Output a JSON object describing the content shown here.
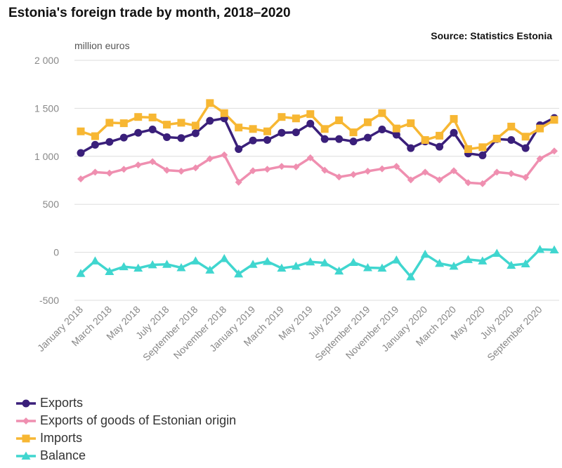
{
  "title": "Estonia's foreign trade by month, 2018–2020",
  "source": "Source: Statistics Estonia",
  "chart_data": {
    "type": "line",
    "title": "Estonia's foreign trade by month, 2018–2020",
    "ylabel": "million euros",
    "xlabel": "",
    "ylim": [
      -500,
      2000
    ],
    "yticks": [
      -500,
      0,
      500,
      1000,
      1500,
      2000
    ],
    "ytick_labels": [
      "-500",
      "0",
      "500",
      "1 000",
      "1 500",
      "2 000"
    ],
    "grid": true,
    "legend_position": "bottom-left",
    "x": [
      "January 2018",
      "February 2018",
      "March 2018",
      "April 2018",
      "May 2018",
      "June 2018",
      "July 2018",
      "August 2018",
      "September 2018",
      "October 2018",
      "November 2018",
      "December 2018",
      "January 2019",
      "February 2019",
      "March 2019",
      "April 2019",
      "May 2019",
      "June 2019",
      "July 2019",
      "August 2019",
      "September 2019",
      "October 2019",
      "November 2019",
      "December 2019",
      "January 2020",
      "February 2020",
      "March 2020",
      "April 2020",
      "May 2020",
      "June 2020",
      "July 2020",
      "August 2020",
      "September 2020",
      "October 2020"
    ],
    "x_tick_labels": [
      "January 2018",
      "March 2018",
      "May 2018",
      "July 2018",
      "September 2018",
      "November 2018",
      "January 2019",
      "March 2019",
      "May 2019",
      "July 2019",
      "September 2019",
      "November 2019",
      "January 2020",
      "March 2020",
      "May 2020",
      "July 2020",
      "September 2020"
    ],
    "series": [
      {
        "name": "Exports",
        "color": "#3a1f7a",
        "marker": "circle",
        "values": [
          1035,
          1120,
          1150,
          1195,
          1245,
          1280,
          1200,
          1190,
          1240,
          1370,
          1395,
          1075,
          1165,
          1170,
          1245,
          1250,
          1340,
          1180,
          1180,
          1155,
          1195,
          1280,
          1225,
          1085,
          1155,
          1100,
          1245,
          1030,
          1010,
          1180,
          1170,
          1085,
          1325,
          1400
        ]
      },
      {
        "name": "Exports of goods of Estonian origin",
        "color": "#ef8fb0",
        "marker": "diamond",
        "values": [
          765,
          835,
          825,
          865,
          910,
          945,
          855,
          845,
          880,
          975,
          1015,
          730,
          850,
          865,
          895,
          890,
          985,
          855,
          785,
          810,
          845,
          870,
          895,
          755,
          835,
          755,
          850,
          725,
          715,
          835,
          820,
          780,
          975,
          1055
        ]
      },
      {
        "name": "Imports",
        "color": "#f7b733",
        "marker": "square",
        "values": [
          1260,
          1210,
          1350,
          1345,
          1410,
          1405,
          1330,
          1350,
          1320,
          1555,
          1450,
          1300,
          1285,
          1260,
          1410,
          1395,
          1440,
          1285,
          1375,
          1250,
          1355,
          1450,
          1290,
          1345,
          1170,
          1215,
          1390,
          1075,
          1095,
          1185,
          1310,
          1205,
          1290,
          1380
        ]
      },
      {
        "name": "Balance",
        "color": "#40d6cf",
        "marker": "triangle",
        "values": [
          -220,
          -90,
          -200,
          -150,
          -165,
          -130,
          -125,
          -160,
          -90,
          -185,
          -65,
          -225,
          -125,
          -95,
          -165,
          -145,
          -100,
          -110,
          -195,
          -105,
          -160,
          -165,
          -80,
          -255,
          -20,
          -115,
          -145,
          -75,
          -90,
          -10,
          -135,
          -120,
          30,
          25
        ]
      }
    ]
  }
}
